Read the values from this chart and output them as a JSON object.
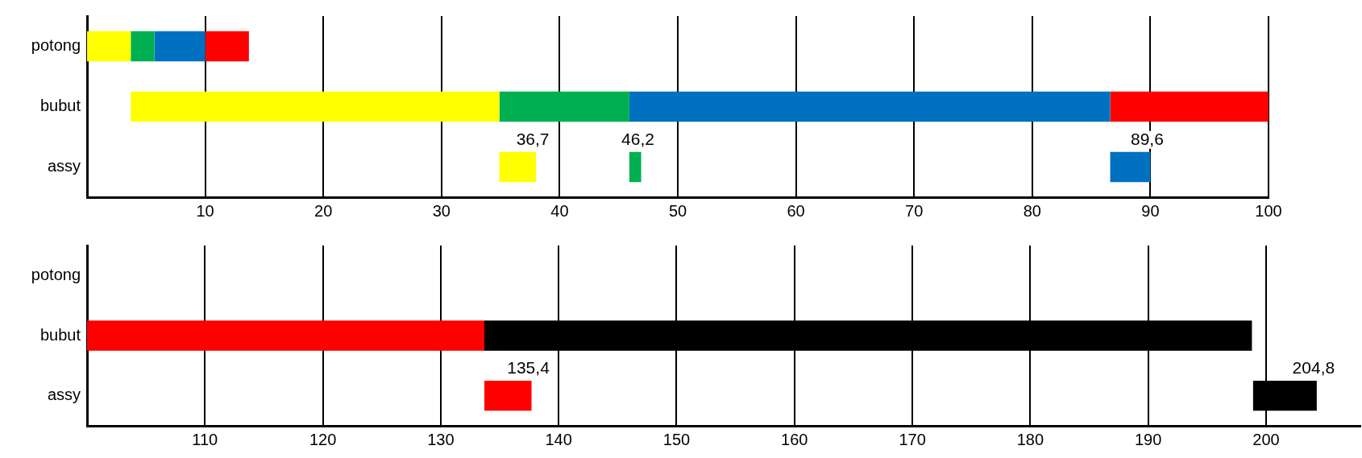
{
  "chart_data": [
    {
      "type": "bar",
      "orientation": "horizontal",
      "categories": [
        "potong",
        "bubut",
        "assy"
      ],
      "series": [
        {
          "color": "#ffff00",
          "base": [
            0,
            3.7,
            34.9
          ],
          "values": [
            3.7,
            31.2,
            3.1
          ]
        },
        {
          "color": "#00b050",
          "base": [
            3.7,
            34.9,
            45.9
          ],
          "values": [
            2,
            11,
            1
          ]
        },
        {
          "color": "#0070c0",
          "base": [
            5.7,
            45.9,
            86.6
          ],
          "values": [
            4.3,
            40.7,
            3.4
          ]
        },
        {
          "color": "#ff0000",
          "base": [
            10,
            86.6,
            null
          ],
          "values": [
            3.7,
            13.4,
            null
          ]
        }
      ],
      "xlim": [
        0,
        100
      ],
      "xticks": [
        10,
        20,
        30,
        40,
        50,
        60,
        70,
        80,
        90,
        100
      ],
      "grid": "x",
      "legend": false,
      "annotations": [
        {
          "text": "36,7",
          "x": 38,
          "y": "assy"
        },
        {
          "text": "46,2",
          "x": 46.9,
          "y": "assy"
        },
        {
          "text": "89,6",
          "x": 90,
          "y": "assy"
        }
      ]
    },
    {
      "type": "bar",
      "orientation": "horizontal",
      "categories": [
        "potong",
        "bubut",
        "assy"
      ],
      "series": [
        {
          "color": "#ff0000",
          "base": [
            null,
            100,
            133.7
          ],
          "values": [
            null,
            33.7,
            4
          ]
        },
        {
          "color": "#000000",
          "base": [
            null,
            133.7,
            198.9
          ],
          "values": [
            null,
            65.1,
            5.4
          ]
        }
      ],
      "xlim": [
        100,
        208
      ],
      "xticks": [
        110,
        120,
        130,
        140,
        150,
        160,
        170,
        180,
        190,
        200
      ],
      "grid": "x",
      "legend": false,
      "annotations": [
        {
          "text": "135,4",
          "x": 137.7,
          "y": "assy"
        },
        {
          "text": "204,8",
          "x": 204.3,
          "y": "assy"
        }
      ]
    }
  ]
}
